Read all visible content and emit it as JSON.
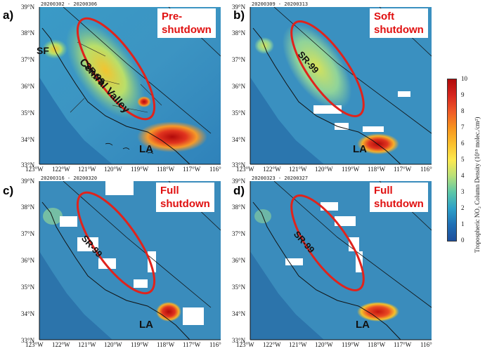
{
  "panels": [
    {
      "letter": "a)",
      "dates": "20200302 - 20200306",
      "title": [
        "Pre-",
        "shutdown"
      ],
      "sr": "SR-99",
      "cv": "Central Valley",
      "sf": "SF",
      "la": "LA"
    },
    {
      "letter": "b)",
      "dates": "20200309 - 20200313",
      "title": [
        "Soft",
        "shutdown"
      ],
      "sr": "SR-99",
      "la": "LA"
    },
    {
      "letter": "c)",
      "dates": "20200316 - 20200320",
      "title": [
        "Full",
        "shutdown"
      ],
      "sr": "SR-99",
      "la": "LA"
    },
    {
      "letter": "d)",
      "dates": "20200323 - 20200327",
      "title": [
        "Full",
        "shutdown"
      ],
      "sr": "SR-99",
      "la": "LA"
    }
  ],
  "lat_labels": [
    "39°N",
    "38°N",
    "37°N",
    "36°N",
    "35°N",
    "34°N",
    "33°N"
  ],
  "lon_labels": [
    "123°W",
    "122°W",
    "121°W",
    "120°W",
    "119°W",
    "118°W",
    "117°W",
    "116°"
  ],
  "colorbar": {
    "ticks": [
      "10",
      "9",
      "8",
      "7",
      "6",
      "5",
      "4",
      "3",
      "2",
      "1",
      "0"
    ],
    "title": "Tropospheric NO₂ Column Density (10¹⁵ molec./cm²)",
    "colors": [
      "#b10a0a",
      "#d7261e",
      "#ef5a28",
      "#f7931e",
      "#fbc02d",
      "#fce94f",
      "#b7e07a",
      "#5cc7a8",
      "#2da0c8",
      "#1f6fb5",
      "#1d4f9c"
    ]
  },
  "colors": {
    "ellipse": "#e0231c",
    "title_red": "#e01010"
  }
}
